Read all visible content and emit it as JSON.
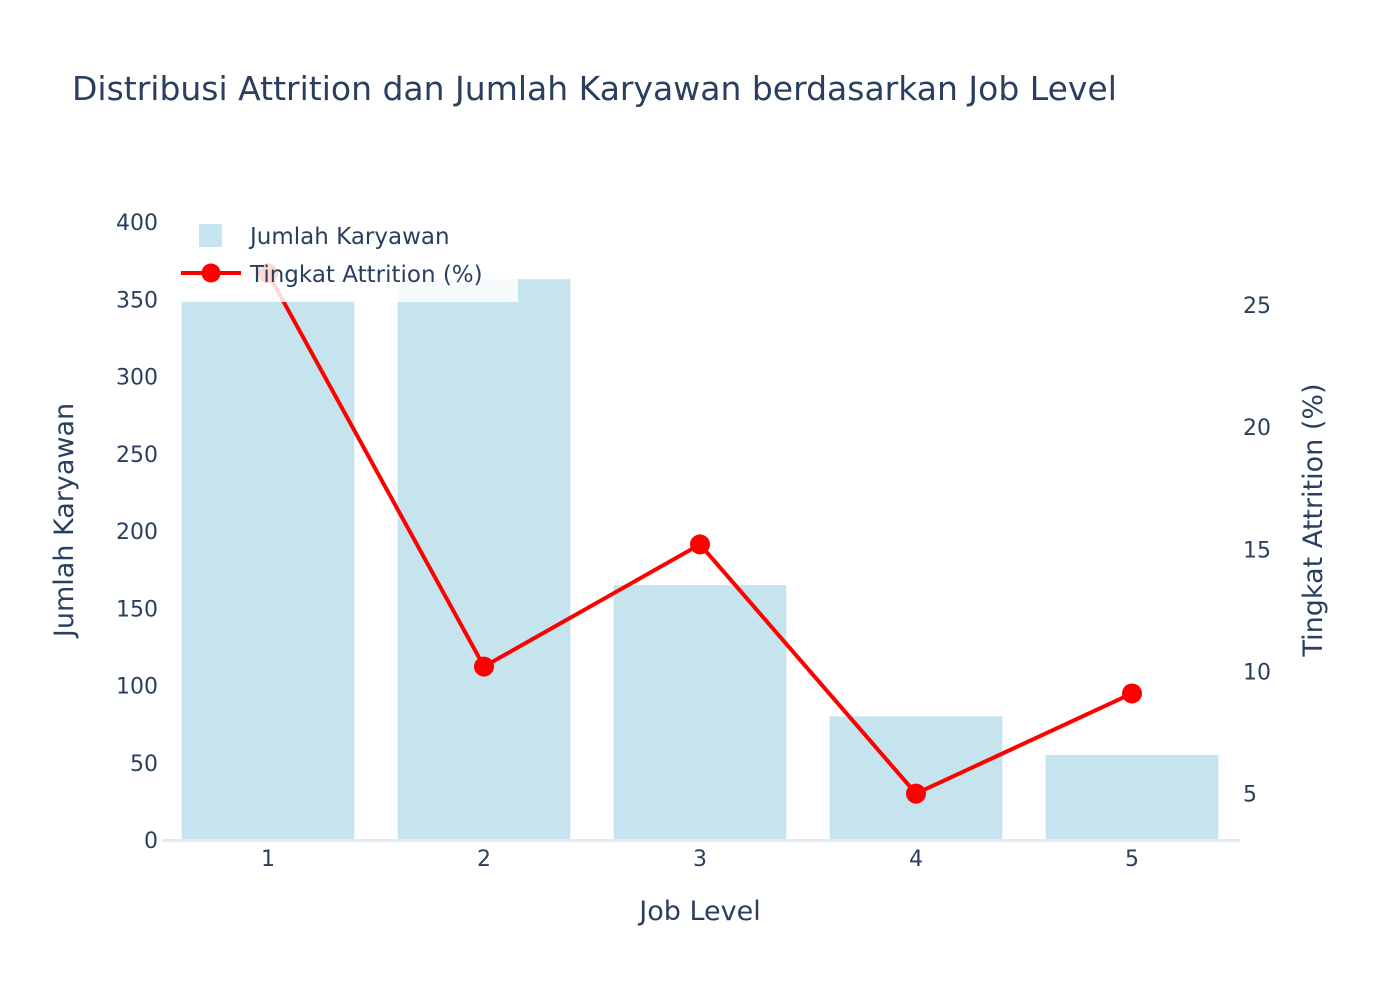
{
  "chart_data": {
    "type": "bar",
    "title": "Distribusi Attrition dan Jumlah Karyawan berdasarkan Job Level",
    "xlabel": "Job Level",
    "ylabel": "Jumlah Karyawan",
    "y2label": "Tingkat Attrition (%)",
    "categories": [
      "1",
      "2",
      "3",
      "4",
      "5"
    ],
    "ylim": [
      0,
      400
    ],
    "yticks": [
      "0",
      "50",
      "100",
      "150",
      "200",
      "250",
      "300",
      "350",
      "400"
    ],
    "y2lim": [
      3.1,
      28.4
    ],
    "y2ticks": [
      "5",
      "10",
      "15",
      "20",
      "25"
    ],
    "grid": false,
    "legend_position": "top-left",
    "series": [
      {
        "name": "Jumlah Karyawan",
        "type": "bar",
        "color": "#add8e6",
        "values": [
          349,
          363,
          165,
          80,
          55
        ]
      },
      {
        "name": "Tingkat Attrition (%)",
        "type": "line",
        "color": "#ff0000",
        "values": [
          26.3,
          10.2,
          15.2,
          5.0,
          9.1
        ]
      }
    ]
  }
}
